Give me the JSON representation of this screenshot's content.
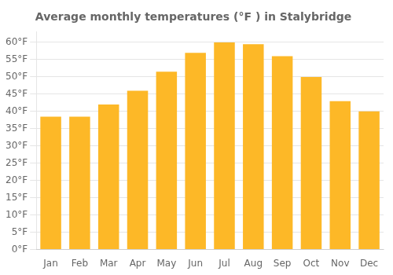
{
  "chart_data": {
    "type": "bar",
    "title": "Average monthly temperatures (°F ) in Stalybridge",
    "categories": [
      "Jan",
      "Feb",
      "Mar",
      "Apr",
      "May",
      "Jun",
      "Jul",
      "Aug",
      "Sep",
      "Oct",
      "Nov",
      "Dec"
    ],
    "values": [
      38.5,
      38.5,
      42,
      46,
      51.5,
      57,
      60,
      59.5,
      56,
      50,
      43,
      40
    ],
    "color": "#FDB827",
    "ylim": [
      0,
      63
    ],
    "yticks": [
      {
        "value": 0,
        "label": "0°F"
      },
      {
        "value": 5,
        "label": "5°F"
      },
      {
        "value": 10,
        "label": "10°F"
      },
      {
        "value": 15,
        "label": "15°F"
      },
      {
        "value": 20,
        "label": "20°F"
      },
      {
        "value": 25,
        "label": "25°F"
      },
      {
        "value": 30,
        "label": "30°F"
      },
      {
        "value": 35,
        "label": "35°F"
      },
      {
        "value": 40,
        "label": "40°F"
      },
      {
        "value": 45,
        "label": "45°F"
      },
      {
        "value": 50,
        "label": "50°F"
      },
      {
        "value": 55,
        "label": "55°F"
      },
      {
        "value": 60,
        "label": "60°F"
      }
    ],
    "grid": true
  }
}
